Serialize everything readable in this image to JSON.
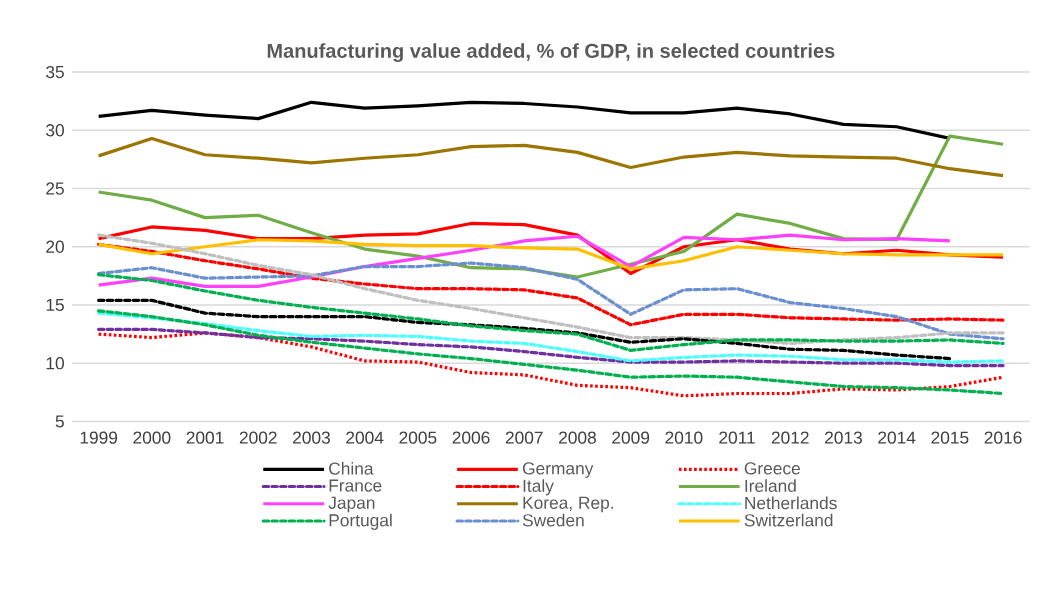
{
  "chart_data": {
    "type": "line",
    "title": "Manufacturing value added, % of GDP, in selected countries",
    "categories": [
      "1999",
      "2000",
      "2001",
      "2002",
      "2003",
      "2004",
      "2005",
      "2006",
      "2007",
      "2008",
      "2009",
      "2010",
      "2011",
      "2012",
      "2013",
      "2014",
      "2015",
      "2016"
    ],
    "ylim": [
      5,
      35
    ],
    "yticks": [
      5,
      10,
      15,
      20,
      25,
      30,
      35
    ],
    "grid": "y",
    "legend": "bottom",
    "series": [
      {
        "name": "China",
        "color": "#000000",
        "line_style": "solid",
        "values": [
          31.2,
          31.7,
          31.3,
          31.0,
          32.4,
          31.9,
          32.1,
          32.4,
          32.3,
          32.0,
          31.5,
          31.5,
          31.9,
          31.4,
          30.5,
          30.3,
          29.3,
          null
        ]
      },
      {
        "name": "Germany",
        "color": "#ff0000",
        "line_style": "solid",
        "values": [
          20.7,
          21.7,
          21.4,
          20.7,
          20.7,
          21.0,
          21.1,
          22.0,
          21.9,
          21.0,
          17.7,
          20.0,
          20.6,
          19.8,
          19.4,
          19.7,
          19.3,
          19.1
        ]
      },
      {
        "name": "Greece",
        "color": "#ff0000",
        "line_style": "dotted",
        "values": [
          12.5,
          12.2,
          12.6,
          12.2,
          11.4,
          10.2,
          10.1,
          9.2,
          9.0,
          8.1,
          7.9,
          7.2,
          7.4,
          7.4,
          7.8,
          7.7,
          8.0,
          8.8
        ]
      },
      {
        "name": "France",
        "color": "#7030a0",
        "line_style": "dashed",
        "values": [
          12.9,
          12.9,
          12.6,
          12.2,
          12.1,
          11.9,
          11.6,
          11.4,
          11.0,
          10.5,
          10.1,
          10.1,
          10.2,
          10.1,
          10.0,
          10.0,
          9.8,
          9.8
        ]
      },
      {
        "name": "Italy",
        "color": "#ff0000",
        "line_style": "dashed",
        "values": [
          20.2,
          19.6,
          18.8,
          18.1,
          17.3,
          16.8,
          16.4,
          16.4,
          16.3,
          15.6,
          13.3,
          14.2,
          14.2,
          13.9,
          13.8,
          13.7,
          13.8,
          13.7
        ]
      },
      {
        "name": "Ireland",
        "color": "#70ad47",
        "line_style": "solid",
        "values": [
          24.7,
          24.0,
          22.5,
          22.7,
          21.2,
          19.8,
          19.2,
          18.2,
          18.1,
          17.4,
          18.5,
          19.6,
          22.8,
          22.0,
          20.7,
          20.6,
          29.5,
          28.8
        ]
      },
      {
        "name": "Japan",
        "color": "#ff40ff",
        "line_style": "solid",
        "values": [
          16.7,
          17.3,
          16.6,
          16.6,
          17.4,
          18.3,
          19.0,
          19.7,
          20.5,
          20.9,
          18.3,
          20.8,
          20.6,
          21.0,
          20.6,
          20.7,
          20.5,
          null
        ]
      },
      {
        "name": "Korea, Rep.",
        "color": "#9c7400",
        "line_style": "solid",
        "values": [
          27.8,
          29.3,
          27.9,
          27.6,
          27.2,
          27.6,
          27.9,
          28.6,
          28.7,
          28.1,
          26.8,
          27.7,
          28.1,
          27.8,
          27.7,
          27.6,
          26.7,
          26.1
        ]
      },
      {
        "name": "Netherlands",
        "color": "#4dffff",
        "line_style": "dashed",
        "values": [
          14.3,
          13.9,
          13.4,
          12.8,
          12.3,
          12.4,
          12.3,
          11.9,
          11.7,
          11.0,
          10.2,
          10.5,
          10.7,
          10.6,
          10.3,
          10.3,
          10.1,
          10.2
        ]
      },
      {
        "name": "Portugal",
        "color": "#00b050",
        "line_style": "dashed",
        "values": [
          14.5,
          14.0,
          13.3,
          12.4,
          11.8,
          11.3,
          10.8,
          10.4,
          9.9,
          9.4,
          8.8,
          8.9,
          8.8,
          8.4,
          8.0,
          7.9,
          7.7,
          7.4
        ]
      },
      {
        "name": "Sweden",
        "color": "#6a8fd0",
        "line_style": "dashed",
        "values": [
          17.7,
          18.2,
          17.3,
          17.4,
          17.5,
          18.3,
          18.3,
          18.6,
          18.2,
          17.2,
          14.2,
          16.3,
          16.4,
          15.2,
          14.7,
          14.0,
          12.5,
          12.1
        ]
      },
      {
        "name": "Switzerland",
        "color": "#ffc000",
        "line_style": "solid",
        "values": [
          20.2,
          19.4,
          20.0,
          20.6,
          20.5,
          20.2,
          20.1,
          20.1,
          19.9,
          19.8,
          18.1,
          18.8,
          20.0,
          19.7,
          19.4,
          19.3,
          19.3,
          19.3
        ]
      },
      {
        "color": "#bfbfbf",
        "line_style": "dashed",
        "values": [
          21.0,
          20.3,
          19.4,
          18.4,
          17.6,
          16.4,
          15.4,
          14.7,
          13.9,
          13.1,
          12.2,
          12.2,
          12.0,
          11.7,
          12.0,
          12.2,
          12.6,
          12.6
        ]
      },
      {
        "color": "#000000",
        "line_style": "dashed",
        "values": [
          15.4,
          15.4,
          14.3,
          14.0,
          14.0,
          14.0,
          13.5,
          13.3,
          13.0,
          12.6,
          11.8,
          12.1,
          11.7,
          11.2,
          11.1,
          10.7,
          10.4,
          null
        ]
      },
      {
        "color": "#00b050",
        "line_style": "dashed",
        "values": [
          17.6,
          17.1,
          16.2,
          15.4,
          14.8,
          14.3,
          13.8,
          13.2,
          12.8,
          12.5,
          11.1,
          11.6,
          12.0,
          12.0,
          11.9,
          11.9,
          12.0,
          11.7
        ]
      }
    ]
  }
}
